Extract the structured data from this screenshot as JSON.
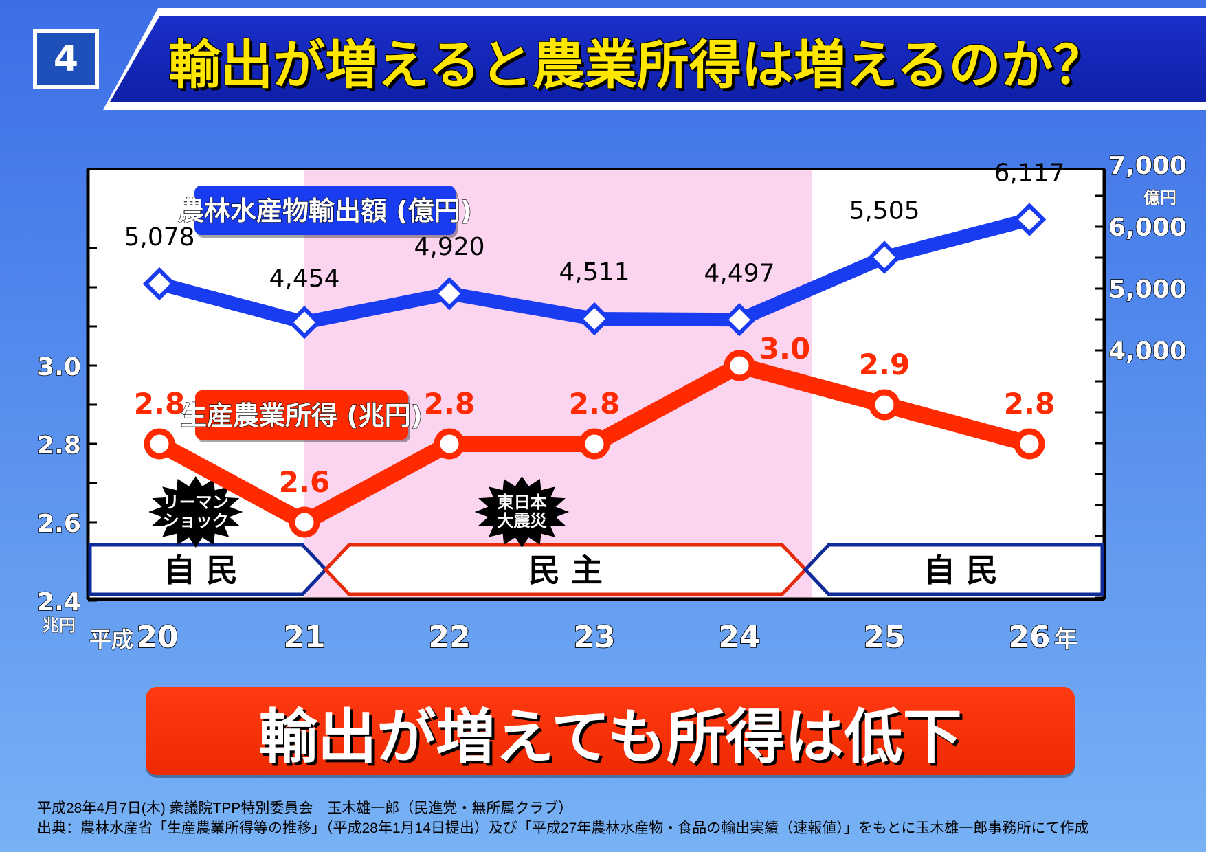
{
  "slide_number": "4",
  "title": "輸出が増えると農業所得は増えるのか？",
  "conclusion": "輸出が増えても所得は低下",
  "footer": {
    "line1": "平成28年4月7日(木) 衆議院TPP特別委員会　玉木雄一郎（民進党・無所属クラブ）",
    "line2": "出典：農林水産省「生産農業所得等の推移」（平成28年1月14日提出）及び「平成27年農林水産物・食品の輸出実績（速報値）」をもとに玉木雄一郎事務所にて作成"
  },
  "chart_data": {
    "type": "line",
    "x_prefix": "平成",
    "x_suffix": "年",
    "categories": [
      "20",
      "21",
      "22",
      "23",
      "24",
      "25",
      "26"
    ],
    "series": [
      {
        "name": "農林水産物輸出額 (億円)",
        "axis": "right",
        "values": [
          5078,
          4454,
          4920,
          4511,
          4497,
          5505,
          6117
        ],
        "labels": [
          "5,078",
          "4,454",
          "4,920",
          "4,511",
          "4,497",
          "5,505",
          "6,117"
        ],
        "color": "#1a3cf0"
      },
      {
        "name": "生産農業所得 (兆円)",
        "axis": "left",
        "values": [
          2.8,
          2.6,
          2.8,
          2.8,
          3.0,
          2.9,
          2.8
        ],
        "labels": [
          "2.8",
          "2.6",
          "2.8",
          "2.8",
          "3.0",
          "2.9",
          "2.8"
        ],
        "color": "#ff2a00"
      }
    ],
    "left_axis": {
      "unit": "兆円",
      "ticks": [
        "2.4",
        "2.6",
        "2.8",
        "3.0"
      ],
      "range": [
        2.4,
        3.4
      ]
    },
    "right_axis": {
      "unit": "億円",
      "ticks": [
        "4,000",
        "5,000",
        "6,000",
        "7,000"
      ],
      "range": [
        0,
        7000
      ]
    },
    "shaded_periods": [
      {
        "label": "自 民",
        "from": 0,
        "to": 1,
        "color": "#ffffff",
        "border": "#0f2a99"
      },
      {
        "label": "民 主",
        "from": 1,
        "to": 4.5,
        "color": "#fbd5f0",
        "border": "#e62a0a"
      },
      {
        "label": "自 民",
        "from": 4.5,
        "to": 6,
        "color": "#ffffff",
        "border": "#0f2a99"
      }
    ],
    "annotations": [
      {
        "text": [
          "リーマン",
          "ショック"
        ],
        "at": 0.25
      },
      {
        "text": [
          "東日本",
          "大震災"
        ],
        "at": 2.5
      }
    ]
  }
}
